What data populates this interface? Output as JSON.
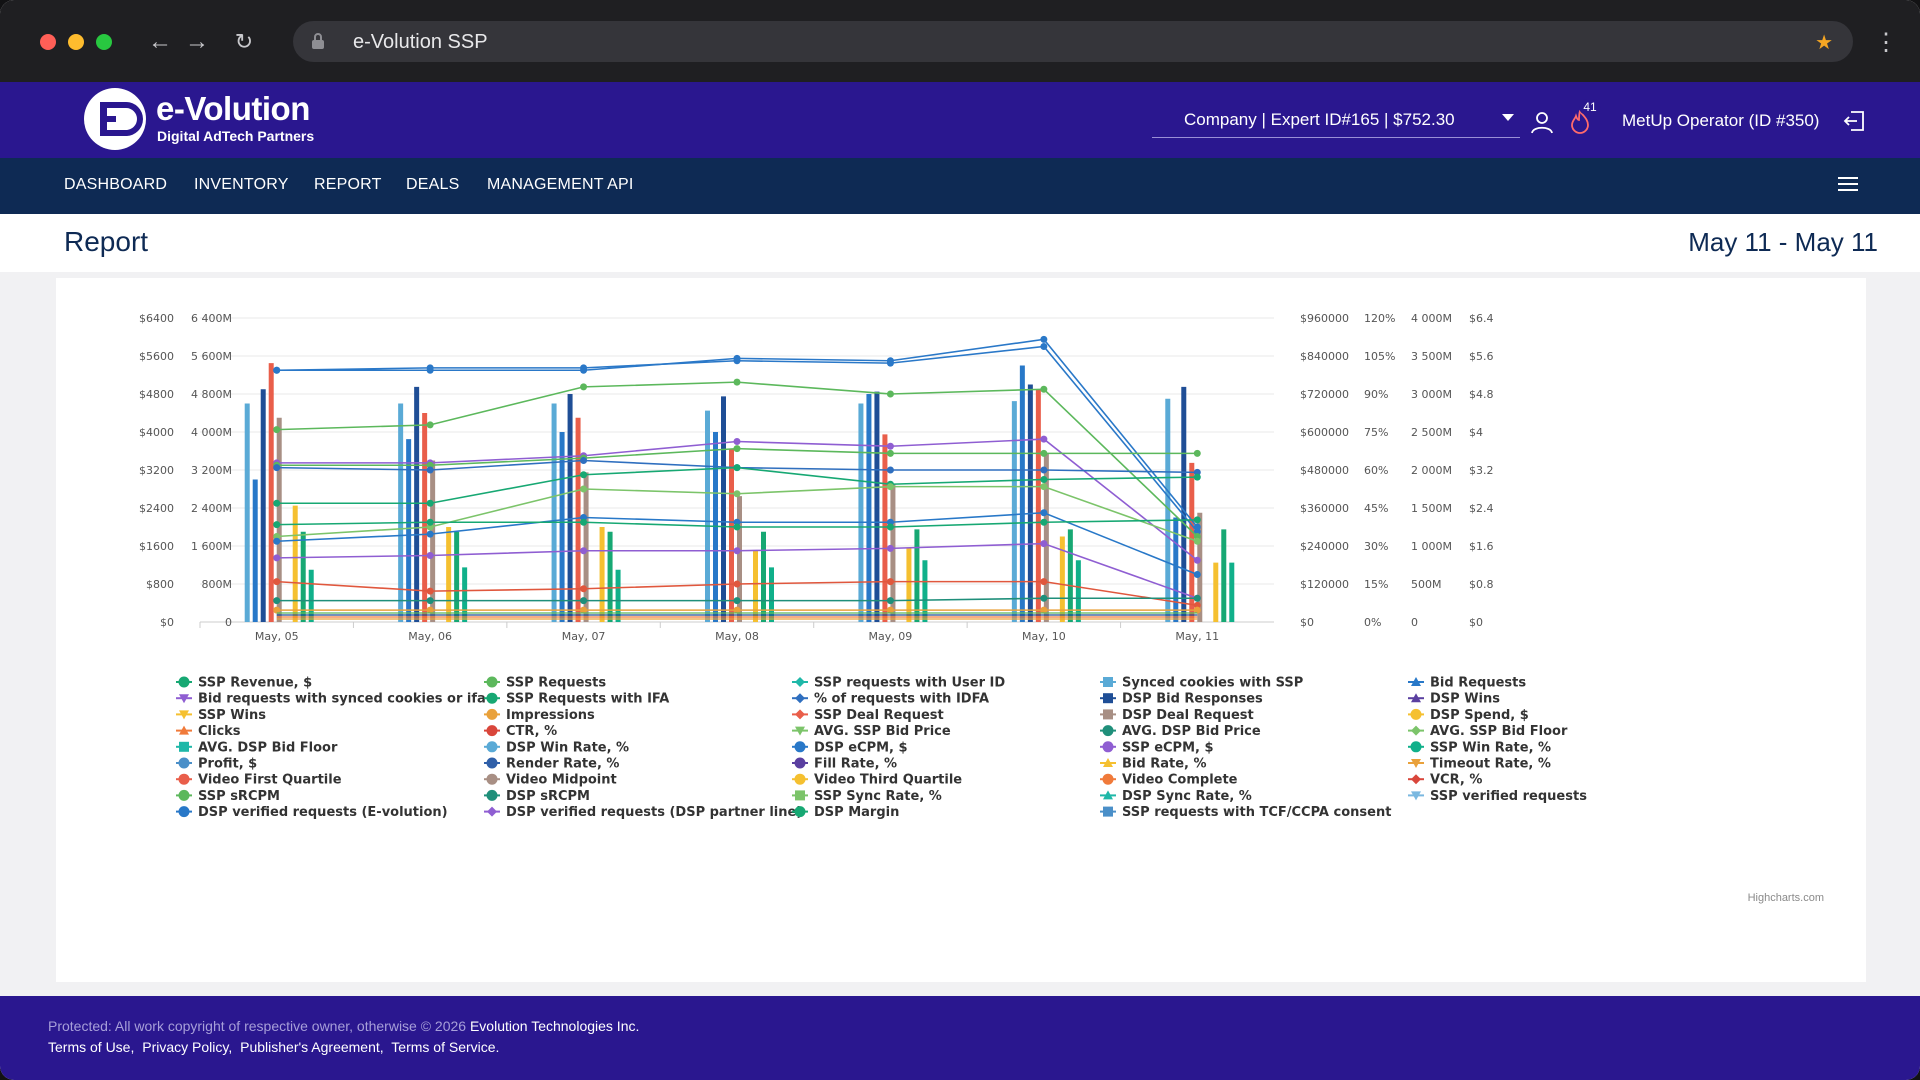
{
  "browser": {
    "url": "e-Volution SSP",
    "colors": {
      "close": "#ff5f57",
      "minimize": "#febc2e",
      "maximize": "#28c840",
      "bookmark": "#f5a623"
    },
    "icons": [
      "back-icon",
      "forward-icon",
      "reload-icon",
      "lock-icon",
      "bookmark-star-icon",
      "more-icon"
    ]
  },
  "header": {
    "logo_title": "e-Volution",
    "logo_subtitle": "Digital AdTech Partners",
    "company_select": "Company | Expert ID#165 | $752.30",
    "notifications_count": "41",
    "operator": "MetUp Operator (ID #350)",
    "icons": [
      "user-icon",
      "fire-icon",
      "logout-icon"
    ],
    "color": "#2a178f"
  },
  "menu": {
    "items": [
      "DASHBOARD",
      "INVENTORY",
      "REPORT",
      "DEALS",
      "MANAGEMENT API"
    ],
    "color": "#0e2a54"
  },
  "page": {
    "title": "Report",
    "date_range": "May 11 - May 11"
  },
  "chart_data": {
    "type": "bar",
    "categories": [
      "May, 05",
      "May, 06",
      "May, 07",
      "May, 08",
      "May, 09",
      "May, 10",
      "May, 11"
    ],
    "axes": {
      "left_outer": [
        "$6400",
        "$5600",
        "$4800",
        "$4000",
        "$3200",
        "$2400",
        "$1600",
        "$800",
        "$0"
      ],
      "left_inner": [
        "6 400M",
        "5 600M",
        "4 800M",
        "4 000M",
        "3 200M",
        "2 400M",
        "1 600M",
        "800M",
        "0"
      ],
      "right_1": [
        "$960000",
        "$840000",
        "$720000",
        "$600000",
        "$480000",
        "$360000",
        "$240000",
        "$120000",
        "$0"
      ],
      "right_2": [
        "120%",
        "105%",
        "90%",
        "75%",
        "60%",
        "45%",
        "30%",
        "15%",
        "0%"
      ],
      "right_3": [
        "4 000M",
        "3 500M",
        "3 000M",
        "2 500M",
        "2 000M",
        "1 500M",
        "1 000M",
        "500M",
        "0"
      ],
      "right_4": [
        "$6.4",
        "$5.6",
        "$4.8",
        "$4",
        "$3.2",
        "$2.4",
        "$1.6",
        "$0.8",
        "$0"
      ]
    },
    "ylim": [
      0,
      6400
    ],
    "grid": true,
    "legend_position": "bottom",
    "credits": "Highcharts.com",
    "bar_series": [
      {
        "color": "#5aaad6",
        "values": [
          4600,
          4600,
          4600,
          4450,
          4600,
          4650,
          4700
        ]
      },
      {
        "color": "#2878c8",
        "values": [
          3000,
          3850,
          4000,
          4000,
          4800,
          5400,
          2200
        ]
      },
      {
        "color": "#1f4e96",
        "values": [
          4900,
          4950,
          4800,
          4750,
          4850,
          5000,
          4950
        ]
      },
      {
        "color": "#e95e4a",
        "values": [
          5450,
          4400,
          4300,
          3650,
          3950,
          4900,
          3350
        ]
      },
      {
        "color": "#a88f84",
        "values": [
          4300,
          3400,
          3150,
          2650,
          2900,
          3550,
          2300
        ]
      },
      {
        "color": "#f5c030",
        "values": [
          2450,
          2000,
          2000,
          1500,
          1550,
          1800,
          1250
        ]
      },
      {
        "color": "#17a873",
        "values": [
          1900,
          1900,
          1900,
          1900,
          1950,
          1950,
          1950
        ]
      },
      {
        "color": "#10b08a",
        "values": [
          1100,
          1150,
          1100,
          1150,
          1300,
          1300,
          1250
        ]
      }
    ],
    "line_series": [
      {
        "color": "#2a78c8",
        "values": [
          5300,
          5300,
          5300,
          5550,
          5500,
          5950,
          2000
        ]
      },
      {
        "color": "#2a78c8",
        "values": [
          5300,
          5350,
          5350,
          5500,
          5450,
          5800,
          1900
        ]
      },
      {
        "color": "#5cb85c",
        "values": [
          4050,
          4150,
          4950,
          5050,
          4800,
          4900,
          1800
        ]
      },
      {
        "color": "#8f5ed2",
        "values": [
          3350,
          3350,
          3500,
          3800,
          3700,
          3850,
          1300
        ]
      },
      {
        "color": "#5cb85c",
        "values": [
          3300,
          3300,
          3450,
          3650,
          3550,
          3550,
          3550
        ]
      },
      {
        "color": "#2f6fbf",
        "values": [
          3250,
          3200,
          3400,
          3250,
          3200,
          3200,
          3150
        ]
      },
      {
        "color": "#17a873",
        "values": [
          2500,
          2500,
          3100,
          3250,
          2900,
          3000,
          3050
        ]
      },
      {
        "color": "#7cc46a",
        "values": [
          1800,
          2000,
          2800,
          2700,
          2850,
          2850,
          1700
        ]
      },
      {
        "color": "#2878c8",
        "values": [
          1700,
          1850,
          2200,
          2100,
          2100,
          2300,
          1000
        ]
      },
      {
        "color": "#8f5ed2",
        "values": [
          1350,
          1400,
          1500,
          1500,
          1550,
          1650,
          500
        ]
      },
      {
        "color": "#17a873",
        "values": [
          2050,
          2100,
          2100,
          2000,
          2000,
          2100,
          2150
        ]
      },
      {
        "color": "#e0573d",
        "values": [
          850,
          650,
          700,
          800,
          850,
          850,
          350
        ]
      },
      {
        "color": "#1f8f7a",
        "values": [
          450,
          450,
          450,
          450,
          450,
          500,
          500
        ]
      },
      {
        "color": "#e9a13b",
        "values": [
          250,
          250,
          250,
          250,
          250,
          250,
          250
        ]
      }
    ],
    "legend": [
      {
        "name": "SSP Revenue, $",
        "color": "#17a873",
        "marker": "circle"
      },
      {
        "name": "SSP Requests",
        "color": "#5cb85c",
        "marker": "circle"
      },
      {
        "name": "SSP requests with User ID",
        "color": "#1fb8a8",
        "marker": "diamond"
      },
      {
        "name": "Synced cookies with SSP",
        "color": "#5aaad6",
        "marker": "square"
      },
      {
        "name": "Bid Requests",
        "color": "#2878c8",
        "marker": "triangle"
      },
      {
        "name": "Bid requests with synced cookies or ifa",
        "color": "#8f5ed2",
        "marker": "triangle-down"
      },
      {
        "name": "SSP Requests with IFA",
        "color": "#17a873",
        "marker": "circle"
      },
      {
        "name": "% of requests with IDFA",
        "color": "#2f6fbf",
        "marker": "diamond"
      },
      {
        "name": "DSP Bid Responses",
        "color": "#1f4e96",
        "marker": "square"
      },
      {
        "name": "DSP Wins",
        "color": "#5a3fa0",
        "marker": "triangle"
      },
      {
        "name": "SSP Wins",
        "color": "#f5c030",
        "marker": "triangle-down"
      },
      {
        "name": "Impressions",
        "color": "#e9a13b",
        "marker": "circle"
      },
      {
        "name": "SSP Deal Request",
        "color": "#e95e4a",
        "marker": "diamond"
      },
      {
        "name": "DSP Deal Request",
        "color": "#a88f84",
        "marker": "square"
      },
      {
        "name": "DSP Spend, $",
        "color": "#f5c030",
        "marker": "circle"
      },
      {
        "name": "Clicks",
        "color": "#f07a3a",
        "marker": "triangle"
      },
      {
        "name": "CTR, %",
        "color": "#d9463b",
        "marker": "circle"
      },
      {
        "name": "AVG. SSP Bid Price",
        "color": "#7cc46a",
        "marker": "triangle-down"
      },
      {
        "name": "AVG. DSP Bid Price",
        "color": "#1f8f7a",
        "marker": "circle"
      },
      {
        "name": "AVG. SSP Bid Floor",
        "color": "#7cc46a",
        "marker": "diamond"
      },
      {
        "name": "AVG. DSP Bid Floor",
        "color": "#1fb8a8",
        "marker": "square"
      },
      {
        "name": "DSP Win Rate, %",
        "color": "#5aaad6",
        "marker": "circle"
      },
      {
        "name": "DSP eCPM, $",
        "color": "#2878c8",
        "marker": "circle"
      },
      {
        "name": "SSP eCPM, $",
        "color": "#8f5ed2",
        "marker": "circle"
      },
      {
        "name": "SSP Win Rate, %",
        "color": "#10b08a",
        "marker": "circle"
      },
      {
        "name": "Profit, $",
        "color": "#4a8fc8",
        "marker": "circle"
      },
      {
        "name": "Render Rate, %",
        "color": "#2f5fa8",
        "marker": "circle"
      },
      {
        "name": "Fill Rate, %",
        "color": "#5a3fa0",
        "marker": "circle"
      },
      {
        "name": "Bid Rate, %",
        "color": "#f5c030",
        "marker": "triangle"
      },
      {
        "name": "Timeout Rate, %",
        "color": "#e9a13b",
        "marker": "triangle-down"
      },
      {
        "name": "Video First Quartile",
        "color": "#e95e4a",
        "marker": "circle"
      },
      {
        "name": "Video Midpoint",
        "color": "#a88f84",
        "marker": "circle"
      },
      {
        "name": "Video Third Quartile",
        "color": "#f5c030",
        "marker": "circle"
      },
      {
        "name": "Video Complete",
        "color": "#f07a3a",
        "marker": "circle"
      },
      {
        "name": "VCR, %",
        "color": "#d9463b",
        "marker": "diamond"
      },
      {
        "name": "SSP sRCPM",
        "color": "#5cb85c",
        "marker": "circle"
      },
      {
        "name": "DSP sRCPM",
        "color": "#1f8f7a",
        "marker": "circle"
      },
      {
        "name": "SSP Sync Rate, %",
        "color": "#7cc46a",
        "marker": "square"
      },
      {
        "name": "DSP Sync Rate, %",
        "color": "#1fb8a8",
        "marker": "triangle"
      },
      {
        "name": "SSP verified requests",
        "color": "#7ab8e0",
        "marker": "triangle-down"
      },
      {
        "name": "DSP verified requests (E-volution)",
        "color": "#2878c8",
        "marker": "circle"
      },
      {
        "name": "DSP verified requests (DSP partner line)",
        "color": "#8f5ed2",
        "marker": "diamond"
      },
      {
        "name": "DSP Margin",
        "color": "#17a873",
        "marker": "circle"
      },
      {
        "name": "SSP requests with TCF/CCPA consent",
        "color": "#4a8fc8",
        "marker": "square"
      }
    ]
  },
  "footer": {
    "copyright_prefix": "Protected: All work copyright of respective owner, otherwise © 2026 ",
    "copyright_company": "Evolution Technologies Inc.",
    "links": [
      "Terms of Use,",
      "Privacy Policy,",
      "Publisher's Agreement,",
      "Terms of Service."
    ]
  }
}
